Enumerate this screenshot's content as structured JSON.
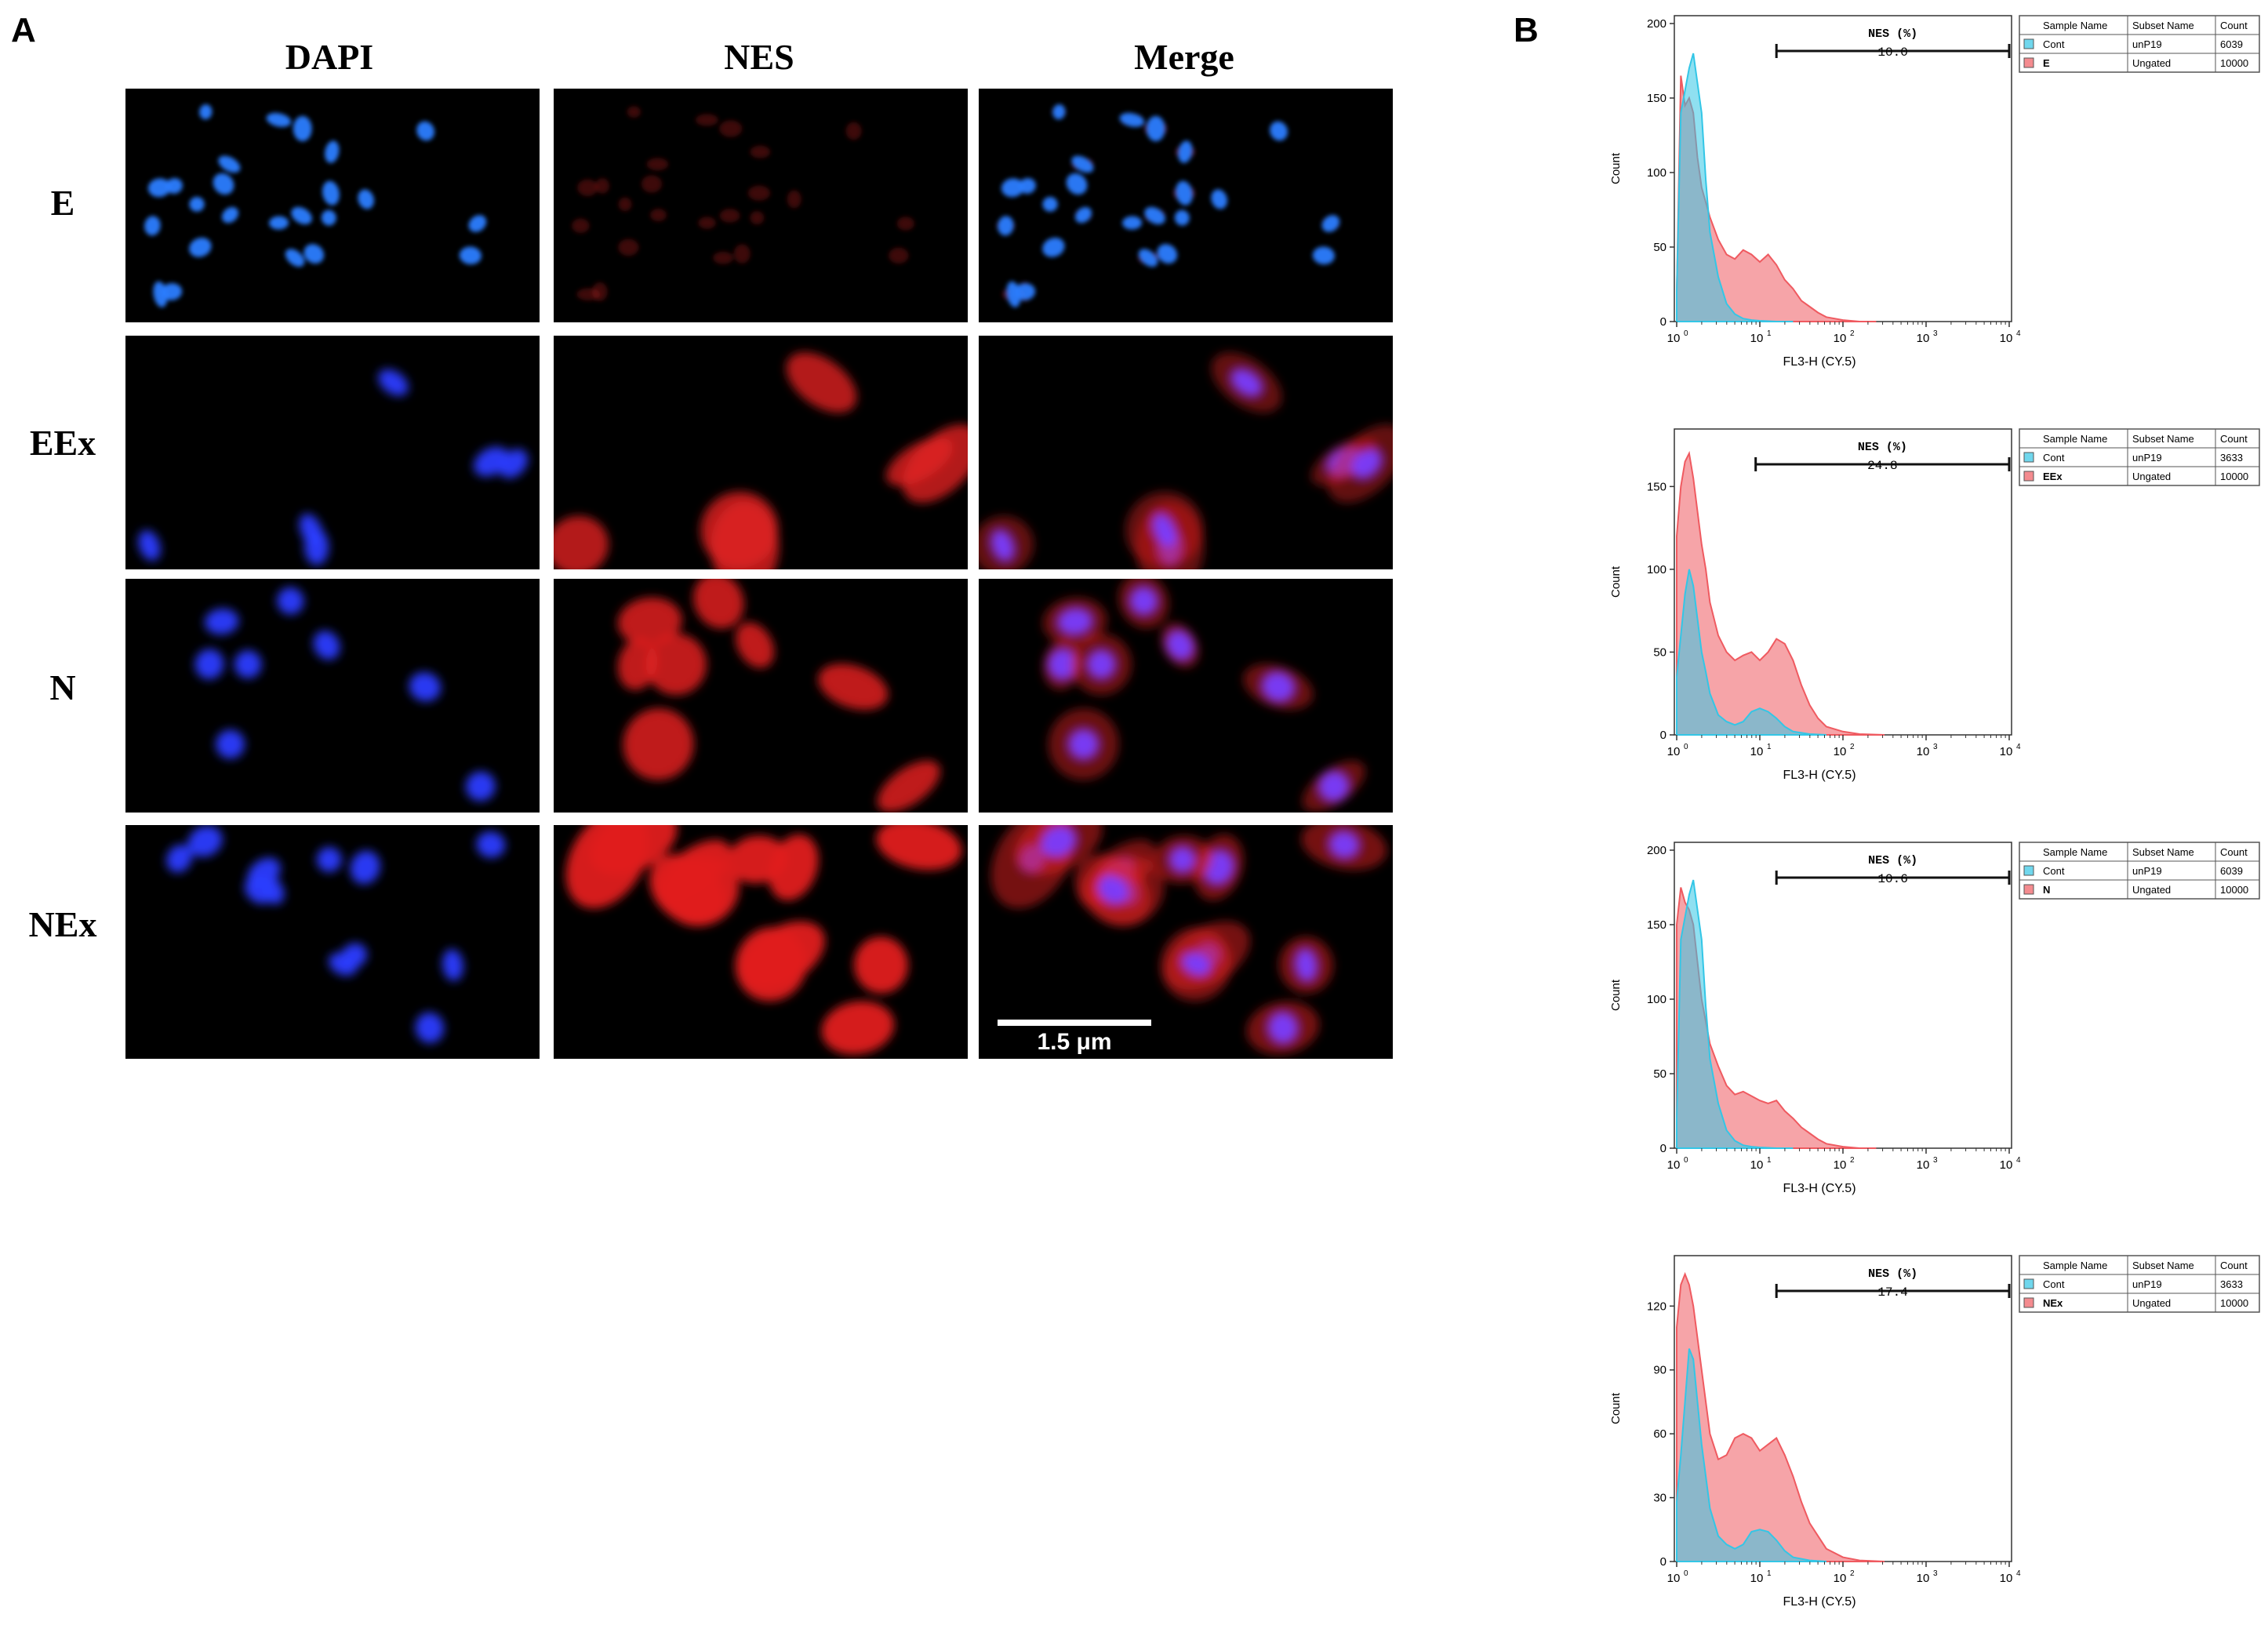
{
  "panels": {
    "a": "A",
    "b": "B"
  },
  "microscopy": {
    "columns": [
      "DAPI",
      "NES",
      "Merge"
    ],
    "rows": [
      "E",
      "EEx",
      "N",
      "NEx"
    ],
    "scale_bar": "1.5 μm"
  },
  "flow": {
    "y_axis_label": "Count",
    "x_axis_label": "FL3-H (CY.5)",
    "x_ticks": [
      "10",
      "10",
      "10",
      "10",
      "10"
    ],
    "x_exponents": [
      "0",
      "1",
      "2",
      "3",
      "4"
    ],
    "legend_headers": [
      "Sample Name",
      "Subset Name",
      "Count"
    ],
    "colors": {
      "control": "#33c6e6",
      "sample": "#ef5a60",
      "overlap": "#6f8fb0"
    },
    "charts": [
      {
        "gate_name": "NES (%)",
        "gate_value": "10.0",
        "y_ticks": [
          "0",
          "50",
          "100",
          "150",
          "200"
        ],
        "y_max": 200,
        "legend": [
          {
            "sample": "Cont",
            "subset": "unP19",
            "count": "6039"
          },
          {
            "sample": "E",
            "subset": "Ungated",
            "count": "10000"
          }
        ],
        "control_x": [
          0,
          0.05,
          0.1,
          0.15,
          0.2,
          0.25,
          0.3,
          0.35,
          0.4,
          0.5,
          0.6,
          0.7,
          0.8,
          0.9,
          1.0,
          1.2,
          1.4
        ],
        "control_y": [
          20,
          140,
          155,
          170,
          180,
          160,
          140,
          95,
          60,
          30,
          12,
          5,
          2,
          1,
          0.5,
          0,
          0
        ],
        "sample_x": [
          0,
          0.05,
          0.1,
          0.15,
          0.2,
          0.25,
          0.3,
          0.35,
          0.4,
          0.5,
          0.6,
          0.7,
          0.8,
          0.9,
          1.0,
          1.1,
          1.2,
          1.3,
          1.4,
          1.5,
          1.6,
          1.7,
          1.8,
          2.0,
          2.2,
          2.4
        ],
        "sample_y": [
          20,
          165,
          145,
          150,
          140,
          110,
          90,
          80,
          70,
          55,
          45,
          42,
          48,
          45,
          40,
          45,
          38,
          28,
          22,
          14,
          10,
          6,
          3,
          1,
          0,
          0
        ]
      },
      {
        "gate_name": "NES (%)",
        "gate_value": "24.8",
        "y_ticks": [
          "0",
          "50",
          "100",
          "150"
        ],
        "y_max": 180,
        "legend": [
          {
            "sample": "Cont",
            "subset": "unP19",
            "count": "3633"
          },
          {
            "sample": "EEx",
            "subset": "Ungated",
            "count": "10000"
          }
        ],
        "control_x": [
          0,
          0.05,
          0.1,
          0.15,
          0.2,
          0.25,
          0.3,
          0.35,
          0.4,
          0.5,
          0.6,
          0.7,
          0.8,
          0.9,
          1.0,
          1.1,
          1.2,
          1.3,
          1.4,
          1.6,
          1.8
        ],
        "control_y": [
          35,
          60,
          85,
          100,
          90,
          70,
          50,
          38,
          25,
          12,
          8,
          6,
          8,
          14,
          16,
          14,
          10,
          5,
          2,
          0.5,
          0
        ],
        "sample_x": [
          0,
          0.05,
          0.1,
          0.15,
          0.2,
          0.25,
          0.3,
          0.35,
          0.4,
          0.5,
          0.6,
          0.7,
          0.8,
          0.9,
          1.0,
          1.1,
          1.2,
          1.3,
          1.4,
          1.5,
          1.6,
          1.7,
          1.8,
          2.0,
          2.2,
          2.5
        ],
        "sample_y": [
          120,
          150,
          165,
          170,
          155,
          135,
          115,
          100,
          80,
          60,
          50,
          45,
          48,
          50,
          45,
          50,
          58,
          55,
          45,
          30,
          18,
          10,
          5,
          2,
          0.5,
          0
        ]
      },
      {
        "gate_name": "NES (%)",
        "gate_value": "10.6",
        "y_ticks": [
          "0",
          "50",
          "100",
          "150",
          "200"
        ],
        "y_max": 200,
        "legend": [
          {
            "sample": "Cont",
            "subset": "unP19",
            "count": "6039"
          },
          {
            "sample": "N",
            "subset": "Ungated",
            "count": "10000"
          }
        ],
        "control_x": [
          0,
          0.05,
          0.1,
          0.15,
          0.2,
          0.25,
          0.3,
          0.35,
          0.4,
          0.5,
          0.6,
          0.7,
          0.8,
          0.9,
          1.0,
          1.2,
          1.4
        ],
        "control_y": [
          20,
          140,
          155,
          170,
          180,
          160,
          140,
          95,
          60,
          30,
          12,
          5,
          2,
          1,
          0.5,
          0,
          0
        ],
        "sample_x": [
          0,
          0.05,
          0.1,
          0.15,
          0.2,
          0.25,
          0.3,
          0.35,
          0.4,
          0.5,
          0.6,
          0.7,
          0.8,
          0.9,
          1.0,
          1.1,
          1.2,
          1.3,
          1.4,
          1.5,
          1.6,
          1.7,
          1.8,
          2.0,
          2.2,
          2.4
        ],
        "sample_y": [
          150,
          175,
          165,
          160,
          150,
          125,
          100,
          85,
          70,
          55,
          42,
          36,
          38,
          35,
          32,
          30,
          32,
          25,
          20,
          14,
          10,
          6,
          3,
          1,
          0,
          0
        ]
      },
      {
        "gate_name": "NES (%)",
        "gate_value": "17.4",
        "y_ticks": [
          "0",
          "30",
          "60",
          "90",
          "120"
        ],
        "y_max": 140,
        "legend": [
          {
            "sample": "Cont",
            "subset": "unP19",
            "count": "3633"
          },
          {
            "sample": "NEx",
            "subset": "Ungated",
            "count": "10000"
          }
        ],
        "control_x": [
          0,
          0.05,
          0.1,
          0.15,
          0.2,
          0.25,
          0.3,
          0.35,
          0.4,
          0.5,
          0.6,
          0.7,
          0.8,
          0.9,
          1.0,
          1.1,
          1.2,
          1.3,
          1.4,
          1.6,
          1.8
        ],
        "control_y": [
          28,
          50,
          75,
          100,
          95,
          75,
          55,
          40,
          25,
          12,
          8,
          6,
          8,
          14,
          15,
          14,
          10,
          5,
          2,
          0.5,
          0
        ],
        "sample_x": [
          0,
          0.05,
          0.1,
          0.15,
          0.2,
          0.25,
          0.3,
          0.35,
          0.4,
          0.5,
          0.6,
          0.7,
          0.8,
          0.9,
          1.0,
          1.1,
          1.2,
          1.3,
          1.4,
          1.5,
          1.6,
          1.7,
          1.8,
          2.0,
          2.2,
          2.5
        ],
        "sample_y": [
          110,
          130,
          135,
          130,
          120,
          105,
          90,
          75,
          60,
          48,
          50,
          58,
          60,
          58,
          52,
          55,
          58,
          50,
          40,
          28,
          18,
          12,
          6,
          2,
          0.5,
          0
        ]
      }
    ]
  },
  "chart_data": [
    {
      "type": "area",
      "x": [
        0,
        0.2,
        0.4,
        0.6,
        0.8,
        1.0,
        1.2,
        1.4,
        1.6,
        1.8,
        2.0,
        2.4
      ],
      "series": [
        {
          "name": "Cont",
          "values": [
            20,
            180,
            60,
            12,
            2,
            0.5,
            0,
            0,
            0,
            0,
            0,
            0
          ]
        },
        {
          "name": "E",
          "values": [
            20,
            140,
            70,
            45,
            48,
            40,
            38,
            22,
            10,
            3,
            1,
            0
          ]
        }
      ],
      "xlabel": "FL3-H (CY.5)",
      "ylabel": "Count",
      "ylim": [
        0,
        200
      ],
      "x_scale": "log"
    },
    {
      "type": "area",
      "x": [
        0,
        0.2,
        0.4,
        0.6,
        0.8,
        1.0,
        1.2,
        1.4,
        1.6,
        1.8,
        2.0,
        2.5
      ],
      "series": [
        {
          "name": "Cont",
          "values": [
            35,
            90,
            25,
            8,
            8,
            16,
            10,
            2,
            0.5,
            0,
            0,
            0
          ]
        },
        {
          "name": "EEx",
          "values": [
            120,
            155,
            80,
            50,
            48,
            45,
            58,
            45,
            18,
            5,
            2,
            0
          ]
        }
      ],
      "xlabel": "FL3-H (CY.5)",
      "ylabel": "Count",
      "ylim": [
        0,
        180
      ],
      "x_scale": "log"
    },
    {
      "type": "area",
      "x": [
        0,
        0.2,
        0.4,
        0.6,
        0.8,
        1.0,
        1.2,
        1.4,
        1.6,
        1.8,
        2.0,
        2.4
      ],
      "series": [
        {
          "name": "Cont",
          "values": [
            20,
            180,
            60,
            12,
            2,
            0.5,
            0,
            0,
            0,
            0,
            0,
            0
          ]
        },
        {
          "name": "N",
          "values": [
            150,
            150,
            70,
            42,
            38,
            32,
            32,
            20,
            10,
            3,
            1,
            0
          ]
        }
      ],
      "xlabel": "FL3-H (CY.5)",
      "ylabel": "Count",
      "ylim": [
        0,
        200
      ],
      "x_scale": "log"
    },
    {
      "type": "area",
      "x": [
        0,
        0.2,
        0.4,
        0.6,
        0.8,
        1.0,
        1.2,
        1.4,
        1.6,
        1.8,
        2.0,
        2.5
      ],
      "series": [
        {
          "name": "Cont",
          "values": [
            28,
            95,
            25,
            8,
            8,
            15,
            10,
            2,
            0.5,
            0,
            0,
            0
          ]
        },
        {
          "name": "NEx",
          "values": [
            110,
            120,
            60,
            50,
            60,
            52,
            58,
            40,
            18,
            6,
            2,
            0
          ]
        }
      ],
      "xlabel": "FL3-H (CY.5)",
      "ylabel": "Count",
      "ylim": [
        0,
        140
      ],
      "x_scale": "log"
    }
  ]
}
